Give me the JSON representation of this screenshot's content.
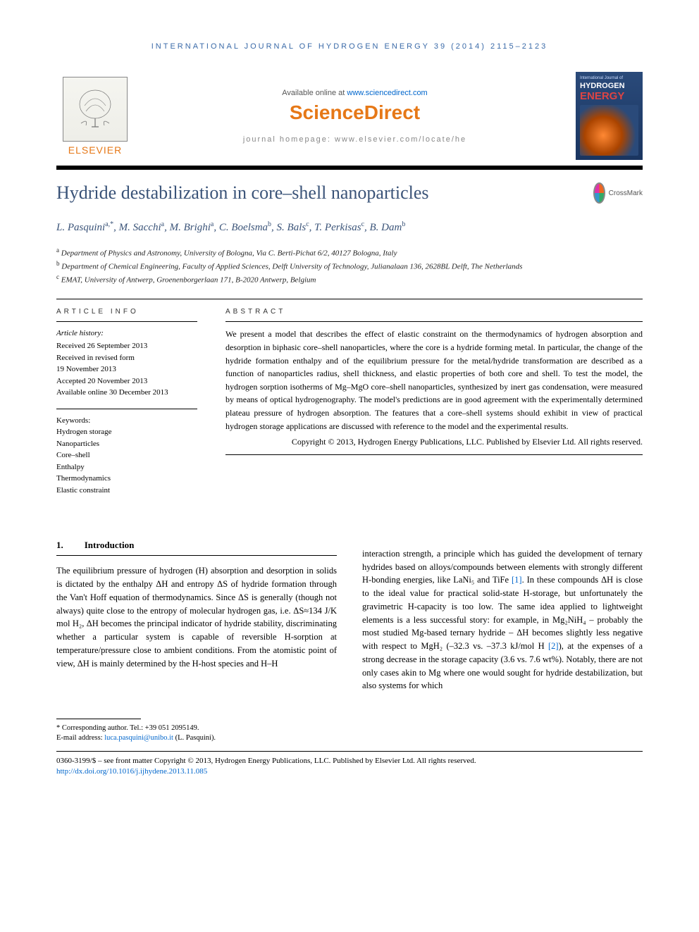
{
  "running_head": "INTERNATIONAL JOURNAL OF HYDROGEN ENERGY 39 (2014) 2115–2123",
  "header": {
    "available_text": "Available online at ",
    "available_link": "www.sciencedirect.com",
    "sd_brand_left": "Science",
    "sd_brand_right": "Direct",
    "homepage_label": "journal homepage: www.elsevier.com/locate/he",
    "elsevier_word": "ELSEVIER",
    "journal_cover": {
      "topline": "International Journal of",
      "line1": "HYDROGEN",
      "line2": "ENERGY"
    }
  },
  "title": "Hydride destabilization in core–shell nanoparticles",
  "crossmark_label": "CrossMark",
  "authors_html": "L. Pasquini <sup>a,*</sup>, M. Sacchi <sup>a</sup>, M. Brighi <sup>a</sup>, C. Boelsma <sup>b</sup>, S. Bals <sup>c</sup>, T. Perkisas <sup>c</sup>, B. Dam <sup>b</sup>",
  "authors": [
    {
      "name": "L. Pasquini",
      "sup": "a,*"
    },
    {
      "name": "M. Sacchi",
      "sup": "a"
    },
    {
      "name": "M. Brighi",
      "sup": "a"
    },
    {
      "name": "C. Boelsma",
      "sup": "b"
    },
    {
      "name": "S. Bals",
      "sup": "c"
    },
    {
      "name": "T. Perkisas",
      "sup": "c"
    },
    {
      "name": "B. Dam",
      "sup": "b"
    }
  ],
  "affiliations": [
    {
      "sup": "a",
      "text": "Department of Physics and Astronomy, University of Bologna, Via C. Berti-Pichat 6/2, 40127 Bologna, Italy"
    },
    {
      "sup": "b",
      "text": "Department of Chemical Engineering, Faculty of Applied Sciences, Delft University of Technology, Julianalaan 136, 2628BL Delft, The Netherlands"
    },
    {
      "sup": "c",
      "text": "EMAT, University of Antwerp, Groenenborgerlaan 171, B-2020 Antwerp, Belgium"
    }
  ],
  "article_info": {
    "label": "ARTICLE INFO",
    "history_head": "Article history:",
    "history": [
      "Received 26 September 2013",
      "Received in revised form",
      "19 November 2013",
      "Accepted 20 November 2013",
      "Available online 30 December 2013"
    ],
    "keywords_head": "Keywords:",
    "keywords": [
      "Hydrogen storage",
      "Nanoparticles",
      "Core–shell",
      "Enthalpy",
      "Thermodynamics",
      "Elastic constraint"
    ]
  },
  "abstract": {
    "label": "ABSTRACT",
    "text": "We present a model that describes the effect of elastic constraint on the thermodynamics of hydrogen absorption and desorption in biphasic core–shell nanoparticles, where the core is a hydride forming metal. In particular, the change of the hydride formation enthalpy and of the equilibrium pressure for the metal/hydride transformation are described as a function of nanoparticles radius, shell thickness, and elastic properties of both core and shell. To test the model, the hydrogen sorption isotherms of Mg–MgO core–shell nanoparticles, synthesized by inert gas condensation, were measured by means of optical hydrogenography. The model's predictions are in good agreement with the experimentally determined plateau pressure of hydrogen absorption. The features that a core–shell systems should exhibit in view of practical hydrogen storage applications are discussed with reference to the model and the experimental results.",
    "copyright": "Copyright © 2013, Hydrogen Energy Publications, LLC. Published by Elsevier Ltd. All rights reserved."
  },
  "section1": {
    "num": "1.",
    "title": "Introduction"
  },
  "body": {
    "col1": "The equilibrium pressure of hydrogen (H) absorption and desorption in solids is dictated by the enthalpy ΔH and entropy ΔS of hydride formation through the Van't Hoff equation of thermodynamics. Since ΔS is generally (though not always) quite close to the entropy of molecular hydrogen gas, i.e. ΔS≈134 J/K mol H₂, ΔH becomes the principal indicator of hydride stability, discriminating whether a particular system is capable of reversible H-sorption at temperature/pressure close to ambient conditions. From the atomistic point of view, ΔH is mainly determined by the H-host species and H–H",
    "col2_a": "interaction strength, a principle which has guided the development of ternary hydrides based on alloys/compounds between elements with strongly different H-bonding energies, like LaNi₅ and TiFe ",
    "ref1": "[1]",
    "col2_b": ". In these compounds ΔH is close to the ideal value for practical solid-state H-storage, but unfortunately the gravimetric H-capacity is too low. The same idea applied to lightweight elements is a less successful story: for example, in Mg₂NiH₄ – probably the most studied Mg-based ternary hydride – ΔH becomes slightly less negative with respect to MgH₂ (–32.3 vs. –37.3 kJ/mol H ",
    "ref2": "[2]",
    "col2_c": "), at the expenses of a strong decrease in the storage capacity (3.6 vs. 7.6 wt%). Notably, there are not only cases akin to Mg where one would sought for hydride destabilization, but also systems for which"
  },
  "footnotes": {
    "corr": "* Corresponding author. Tel.: +39 051 2095149.",
    "email_label": "E-mail address: ",
    "email": "luca.pasquini@unibo.it",
    "email_tail": " (L. Pasquini)."
  },
  "bottom": {
    "line1": "0360-3199/$ – see front matter Copyright © 2013, Hydrogen Energy Publications, LLC. Published by Elsevier Ltd. All rights reserved.",
    "doi": "http://dx.doi.org/10.1016/j.ijhydene.2013.11.085"
  },
  "colors": {
    "heading_blue": "#3a5378",
    "link_blue": "#0066cc",
    "elsevier_orange": "#e67817",
    "running_head_blue": "#3a6aa8"
  }
}
